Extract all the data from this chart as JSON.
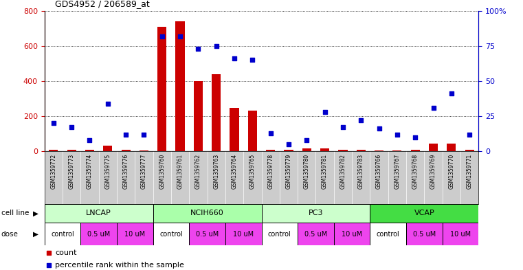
{
  "title": "GDS4952 / 206589_at",
  "samples": [
    "GSM1359772",
    "GSM1359773",
    "GSM1359774",
    "GSM1359775",
    "GSM1359776",
    "GSM1359777",
    "GSM1359760",
    "GSM1359761",
    "GSM1359762",
    "GSM1359763",
    "GSM1359764",
    "GSM1359765",
    "GSM1359778",
    "GSM1359779",
    "GSM1359780",
    "GSM1359781",
    "GSM1359782",
    "GSM1359783",
    "GSM1359766",
    "GSM1359767",
    "GSM1359768",
    "GSM1359769",
    "GSM1359770",
    "GSM1359771"
  ],
  "counts": [
    10,
    10,
    10,
    30,
    10,
    5,
    710,
    740,
    400,
    440,
    245,
    230,
    10,
    10,
    15,
    15,
    10,
    10,
    5,
    5,
    10,
    45,
    45,
    10
  ],
  "percentile": [
    20,
    17,
    8,
    34,
    12,
    12,
    82,
    82,
    73,
    75,
    66,
    65,
    13,
    5,
    8,
    28,
    17,
    22,
    16,
    12,
    10,
    31,
    41,
    12
  ],
  "cell_lines": [
    {
      "label": "LNCAP",
      "start": 0,
      "end": 6,
      "color": "#ccffcc"
    },
    {
      "label": "NCIH660",
      "start": 6,
      "end": 12,
      "color": "#aaffaa"
    },
    {
      "label": "PC3",
      "start": 12,
      "end": 18,
      "color": "#ccffcc"
    },
    {
      "label": "VCAP",
      "start": 18,
      "end": 24,
      "color": "#44dd44"
    }
  ],
  "dose_groups": [
    {
      "label": "control",
      "start": 0,
      "end": 2,
      "color": "#ffffff"
    },
    {
      "label": "0.5 uM",
      "start": 2,
      "end": 4,
      "color": "#ee44ee"
    },
    {
      "label": "10 uM",
      "start": 4,
      "end": 6,
      "color": "#ee44ee"
    },
    {
      "label": "control",
      "start": 6,
      "end": 8,
      "color": "#ffffff"
    },
    {
      "label": "0.5 uM",
      "start": 8,
      "end": 10,
      "color": "#ee44ee"
    },
    {
      "label": "10 uM",
      "start": 10,
      "end": 12,
      "color": "#ee44ee"
    },
    {
      "label": "control",
      "start": 12,
      "end": 14,
      "color": "#ffffff"
    },
    {
      "label": "0.5 uM",
      "start": 14,
      "end": 16,
      "color": "#ee44ee"
    },
    {
      "label": "10 uM",
      "start": 16,
      "end": 18,
      "color": "#ee44ee"
    },
    {
      "label": "control",
      "start": 18,
      "end": 20,
      "color": "#ffffff"
    },
    {
      "label": "0.5 uM",
      "start": 20,
      "end": 22,
      "color": "#ee44ee"
    },
    {
      "label": "10 uM",
      "start": 22,
      "end": 24,
      "color": "#ee44ee"
    }
  ],
  "ylim_left": [
    0,
    800
  ],
  "ylim_right": [
    0,
    100
  ],
  "yticks_left": [
    0,
    200,
    400,
    600,
    800
  ],
  "yticks_right": [
    0,
    25,
    50,
    75,
    100
  ],
  "ytick_right_labels": [
    "0",
    "25",
    "50",
    "75",
    "100%"
  ],
  "bar_color": "#cc0000",
  "dot_color": "#0000cc",
  "axis_color_left": "#cc0000",
  "axis_color_right": "#0000cc",
  "bg_color": "#ffffff",
  "sample_row_color": "#cccccc",
  "cell_line_row_label": "cell line",
  "dose_row_label": "dose",
  "legend_count_label": "count",
  "legend_pct_label": "percentile rank within the sample"
}
